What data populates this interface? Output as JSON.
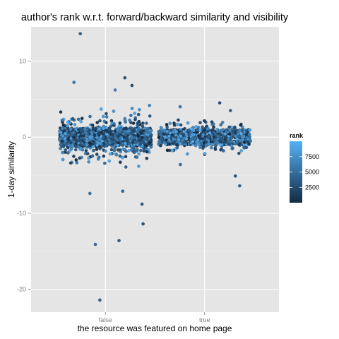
{
  "chart_data": {
    "type": "scatter",
    "title": "author's rank w.r.t. forward/backward similarity and visibility",
    "xlabel": "the resource was featured on home page",
    "ylabel": "1-day similarity",
    "categories": [
      "false",
      "true"
    ],
    "ylim": [
      -23,
      14.5
    ],
    "yticks": [
      -20,
      -10,
      0,
      10
    ],
    "grid": true,
    "jitter": true,
    "legend": {
      "title": "rank",
      "placement": "right",
      "range": [
        0,
        10000
      ],
      "ticks": [
        2500,
        5000,
        7500
      ],
      "color_low": "#132b43",
      "color_high": "#56b1f7"
    },
    "groups": [
      {
        "category": "false",
        "bulk_range": [
          -1.2,
          1.2
        ],
        "notable_points": [
          {
            "y": 13.6,
            "rank": 4000
          },
          {
            "y": 7.8,
            "rank": 3000
          },
          {
            "y": 7.2,
            "rank": 6000
          },
          {
            "y": 6.8,
            "rank": 2500
          },
          {
            "y": 6.2,
            "rank": 7000
          },
          {
            "y": -7.1,
            "rank": 4500
          },
          {
            "y": -7.4,
            "rank": 5500
          },
          {
            "y": -8.8,
            "rank": 3500
          },
          {
            "y": -11.4,
            "rank": 3000
          },
          {
            "y": -13.6,
            "rank": 4000
          },
          {
            "y": -14.1,
            "rank": 5000
          },
          {
            "y": -21.4,
            "rank": 4000
          }
        ]
      },
      {
        "category": "true",
        "bulk_range": [
          -1.0,
          1.0
        ],
        "notable_points": [
          {
            "y": 4.5,
            "rank": 3000
          },
          {
            "y": 4.0,
            "rank": 6000
          },
          {
            "y": 3.5,
            "rank": 4000
          },
          {
            "y": -3.6,
            "rank": 5000
          },
          {
            "y": -5.1,
            "rank": 3500
          },
          {
            "y": -6.4,
            "rank": 4500
          }
        ]
      }
    ]
  }
}
